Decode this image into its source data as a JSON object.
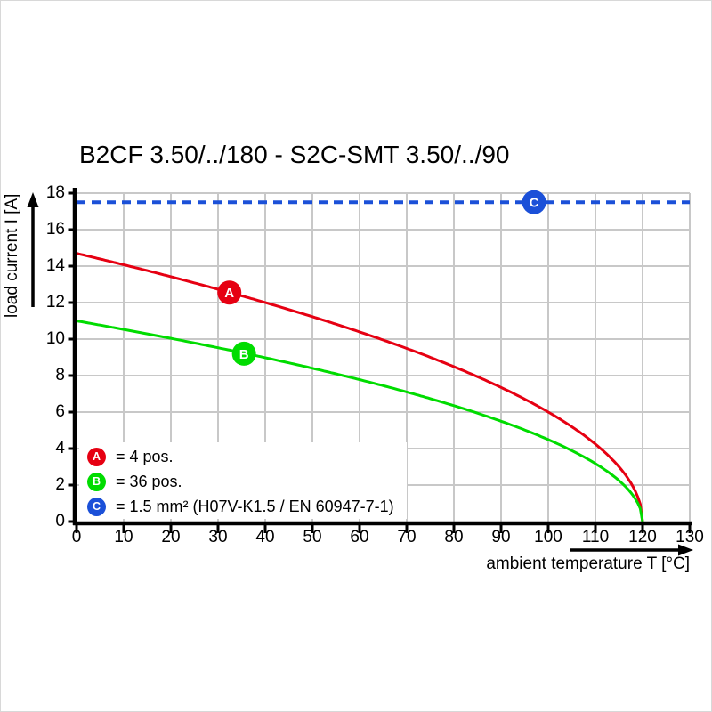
{
  "page": {
    "background": "#ffffff",
    "border_color": "#d8d8d8"
  },
  "chart_data": {
    "type": "line",
    "title": "B2CF 3.50/../180 - S2C-SMT 3.50/../90",
    "xlabel": "ambient temperature T [°C]",
    "ylabel": "load current I [A]",
    "xlim": [
      0,
      130
    ],
    "ylim": [
      0,
      18
    ],
    "x_ticks": [
      0,
      10,
      20,
      30,
      40,
      50,
      60,
      70,
      80,
      90,
      100,
      110,
      120,
      130
    ],
    "y_ticks": [
      0,
      2,
      4,
      6,
      8,
      10,
      12,
      14,
      16,
      18
    ],
    "grid": true,
    "legend_position": "lower-left",
    "colors": {
      "grid": "#c8c8c8",
      "axis": "#000000"
    },
    "series": [
      {
        "name": "A",
        "label": "= 4 pos.",
        "color": "#e60012",
        "line_style": "solid",
        "curve": {
          "law": "sqrt_derating",
          "i0": 14.7,
          "t_end": 120
        },
        "points": [
          [
            0,
            14.7
          ],
          [
            10,
            14.1
          ],
          [
            20,
            13.4
          ],
          [
            30,
            12.7
          ],
          [
            40,
            12.0
          ],
          [
            50,
            11.2
          ],
          [
            60,
            10.4
          ],
          [
            70,
            9.5
          ],
          [
            80,
            8.5
          ],
          [
            90,
            7.4
          ],
          [
            100,
            6.0
          ],
          [
            110,
            4.2
          ],
          [
            115,
            3.0
          ],
          [
            120,
            0
          ]
        ],
        "marker": {
          "t": 32.4,
          "i": 12.55
        }
      },
      {
        "name": "B",
        "label": "= 36 pos.",
        "color": "#00dc00",
        "line_style": "solid",
        "curve": {
          "law": "sqrt_derating",
          "i0": 11.0,
          "t_end": 120
        },
        "points": [
          [
            0,
            11.0
          ],
          [
            10,
            10.5
          ],
          [
            20,
            10.0
          ],
          [
            30,
            9.5
          ],
          [
            40,
            9.0
          ],
          [
            50,
            8.4
          ],
          [
            60,
            7.8
          ],
          [
            70,
            7.1
          ],
          [
            80,
            6.4
          ],
          [
            90,
            5.5
          ],
          [
            100,
            4.5
          ],
          [
            110,
            3.2
          ],
          [
            115,
            2.3
          ],
          [
            120,
            0
          ]
        ],
        "marker": {
          "t": 35.5,
          "i": 9.2
        }
      },
      {
        "name": "C",
        "label": "= 1.5 mm² (H07V-K1.5 / EN 60947-7-1)",
        "color": "#1b50d8",
        "line_style": "dashed",
        "constant_value": 17.5,
        "points": [
          [
            0,
            17.5
          ],
          [
            130,
            17.5
          ]
        ],
        "marker": {
          "t": 97,
          "i": 17.5
        }
      }
    ]
  }
}
